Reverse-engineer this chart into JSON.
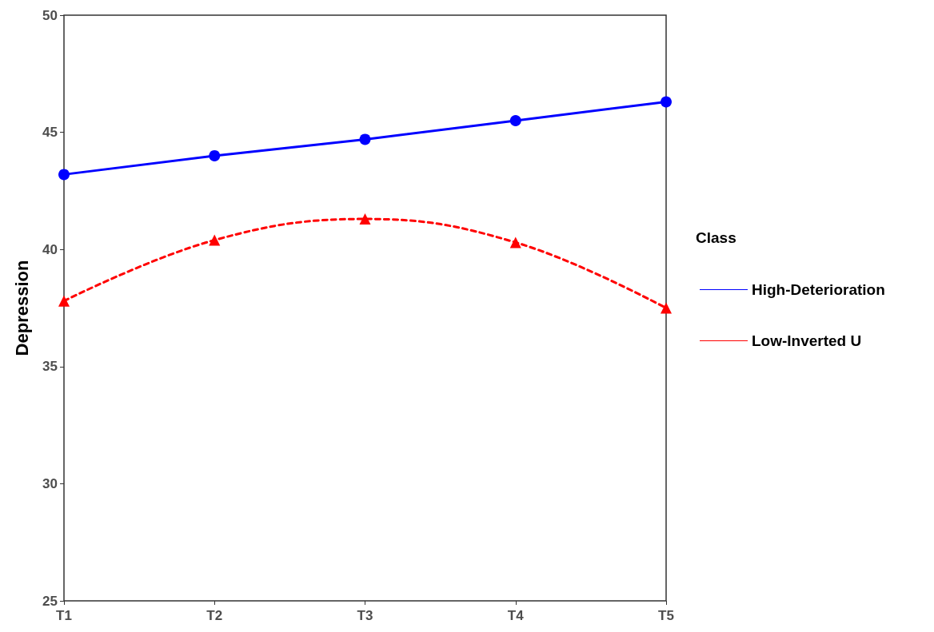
{
  "chart_data": {
    "type": "line",
    "ylabel": "Depression",
    "legend_title": "Class",
    "categories": [
      "T1",
      "T2",
      "T3",
      "T4",
      "T5"
    ],
    "series": [
      {
        "name": "High-Deterioration",
        "color": "#0000ff",
        "values": [
          43.2,
          44.0,
          44.7,
          45.5,
          46.3
        ],
        "marker": "circle",
        "line_style": "solid"
      },
      {
        "name": "Low-Inverted U",
        "color": "#ff0000",
        "values": [
          37.8,
          40.4,
          41.3,
          40.3,
          37.5
        ],
        "marker": "triangle",
        "line_style": "dashed"
      }
    ],
    "ylim": [
      25,
      50
    ],
    "yticks": [
      25,
      30,
      35,
      40,
      45,
      50
    ],
    "grid": false,
    "legend": "right"
  }
}
